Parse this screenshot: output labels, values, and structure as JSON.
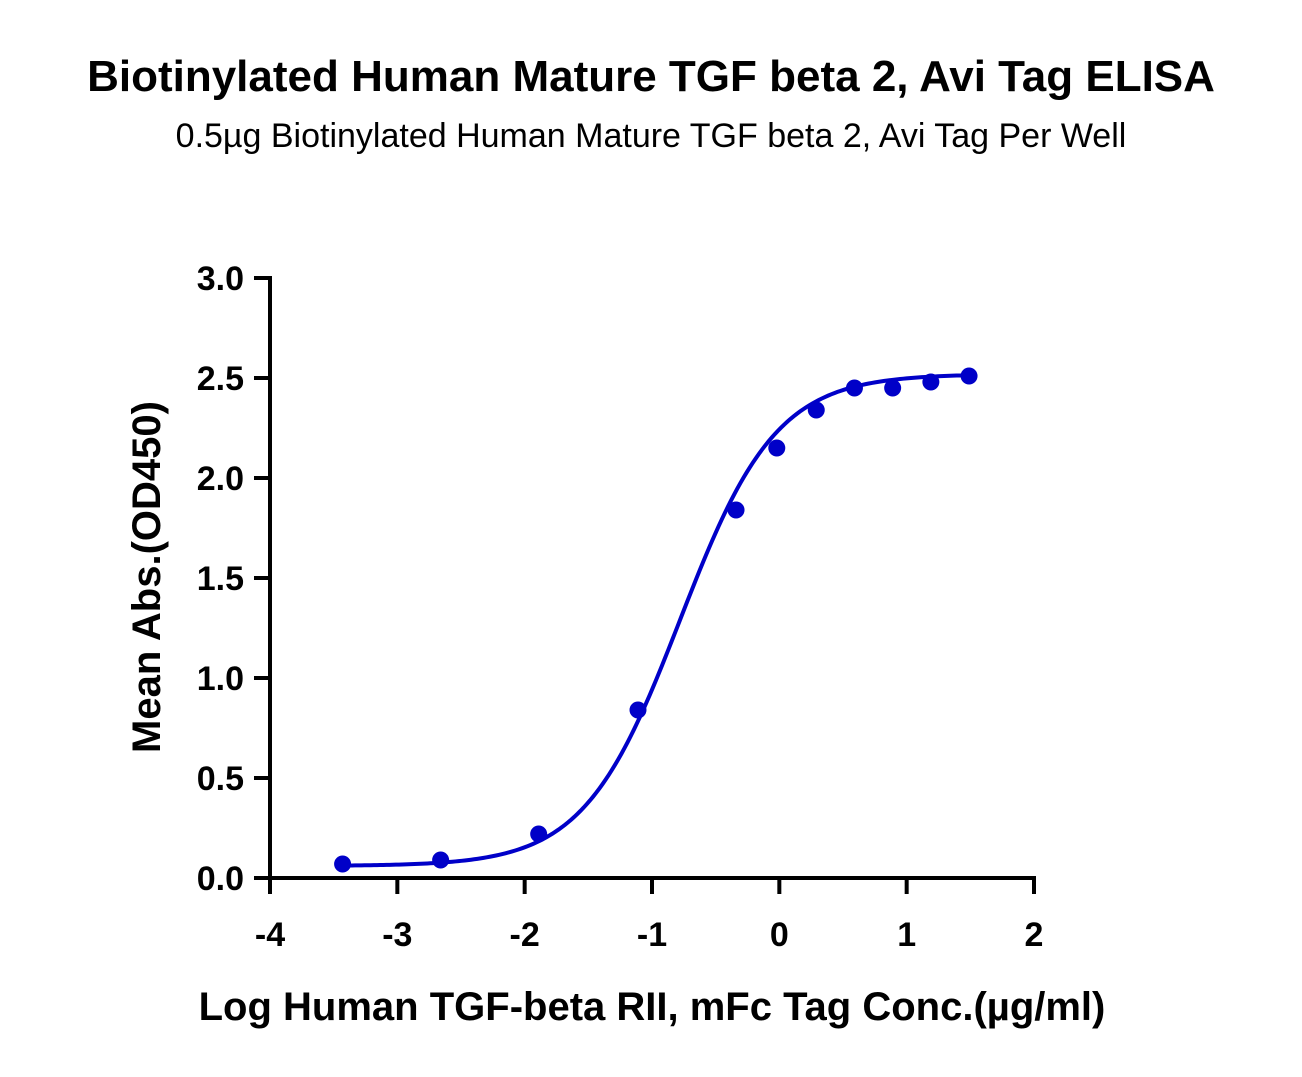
{
  "chart_data": {
    "type": "scatter",
    "title": "Biotinylated Human Mature TGF beta 2, Avi Tag ELISA",
    "subtitle": "0.5µg Biotinylated Human Mature TGF beta 2, Avi Tag Per Well",
    "xlabel": "Log Human TGF-beta RII, mFc Tag Conc.(µg/ml)",
    "ylabel": "Mean Abs.(OD450)",
    "xlim": [
      -4,
      2
    ],
    "ylim": [
      0,
      3.0
    ],
    "x_ticks": [
      "-4",
      "-3",
      "-2",
      "-1",
      "0",
      "1",
      "2"
    ],
    "y_ticks": [
      "0.0",
      "0.5",
      "1.0",
      "1.5",
      "2.0",
      "2.5",
      "3.0"
    ],
    "grid": false,
    "series": [
      {
        "x": [
          -3.43,
          -2.66,
          -1.89,
          -1.11,
          -0.34,
          -0.02,
          0.29,
          0.59,
          0.89,
          1.19,
          1.49
        ],
        "y": [
          0.07,
          0.09,
          0.22,
          0.84,
          1.84,
          2.15,
          2.34,
          2.45,
          2.45,
          2.48,
          2.51
        ],
        "fit": "sigmoidal",
        "color": "#0000c8"
      }
    ]
  }
}
